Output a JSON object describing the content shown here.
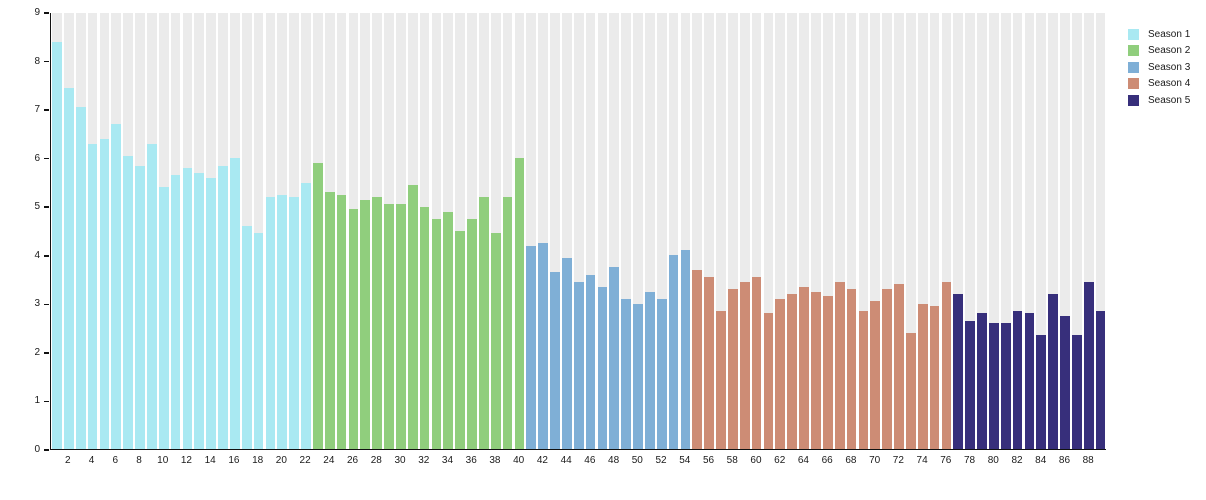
{
  "chart_data": {
    "type": "bar",
    "title": "",
    "xlabel": "",
    "ylabel": "",
    "ylim": [
      0,
      9
    ],
    "grid": false,
    "legend_position": "top-right",
    "plot_background": "#ffffff",
    "background_column_value": 9,
    "background_column_color": "#ebebeb",
    "axis_color": "#111111",
    "yticks": [
      0,
      1,
      2,
      3,
      4,
      5,
      6,
      7,
      8,
      9
    ],
    "xticks": [
      2,
      4,
      6,
      8,
      10,
      12,
      14,
      16,
      18,
      20,
      22,
      24,
      26,
      28,
      30,
      32,
      34,
      36,
      38,
      40,
      42,
      44,
      46,
      48,
      50,
      52,
      54,
      56,
      58,
      60,
      62,
      64,
      66,
      68,
      70,
      72,
      74,
      76,
      78,
      80,
      82,
      84,
      86,
      88
    ],
    "x_unit": "episode-number",
    "series": [
      {
        "name": "Season 1",
        "color": "#a9e9f2",
        "start_episode": 1,
        "values": [
          8.4,
          7.45,
          7.05,
          6.3,
          6.4,
          6.7,
          6.05,
          5.85,
          6.3,
          5.4,
          5.65,
          5.8,
          5.7,
          5.6,
          5.85,
          6.0,
          4.6,
          4.45,
          5.2,
          5.25,
          5.2,
          5.5
        ]
      },
      {
        "name": "Season 2",
        "color": "#90ce7d",
        "start_episode": 23,
        "values": [
          5.9,
          5.3,
          5.25,
          4.95,
          5.15,
          5.2,
          5.05,
          5.05,
          5.45,
          5.0,
          4.75,
          4.9,
          4.5,
          4.75,
          5.2,
          4.45,
          5.2,
          6.0
        ]
      },
      {
        "name": "Season 3",
        "color": "#7fafd6",
        "start_episode": 41,
        "values": [
          4.2,
          4.25,
          3.65,
          3.95,
          3.45,
          3.6,
          3.35,
          3.75,
          3.1,
          3.0,
          3.25,
          3.1,
          4.0,
          4.1
        ]
      },
      {
        "name": "Season 4",
        "color": "#cd8c75",
        "start_episode": 55,
        "values": [
          3.7,
          3.55,
          2.85,
          3.3,
          3.45,
          3.55,
          2.8,
          3.1,
          3.2,
          3.35,
          3.25,
          3.15,
          3.45,
          3.3,
          2.85,
          3.05,
          3.3,
          3.4,
          2.4,
          3.0,
          2.95,
          3.45
        ]
      },
      {
        "name": "Season 5",
        "color": "#372f7b",
        "start_episode": 77,
        "values": [
          3.2,
          2.65,
          2.8,
          2.6,
          2.6,
          2.85,
          2.8,
          2.35,
          3.2,
          2.75,
          2.35,
          3.45,
          2.85
        ]
      }
    ]
  },
  "legend": {
    "items": [
      {
        "label": "Season 1",
        "color": "#a9e9f2"
      },
      {
        "label": "Season 2",
        "color": "#90ce7d"
      },
      {
        "label": "Season 3",
        "color": "#7fafd6"
      },
      {
        "label": "Season 4",
        "color": "#cd8c75"
      },
      {
        "label": "Season 5",
        "color": "#372f7b"
      }
    ]
  }
}
